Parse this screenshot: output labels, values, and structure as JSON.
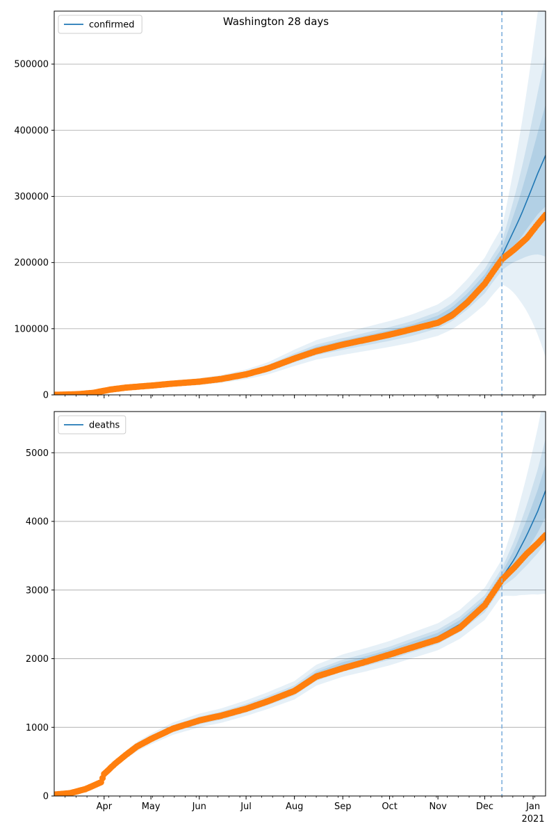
{
  "figure": {
    "title": "Washington 28 days"
  },
  "colors": {
    "model_line": "#1f77b4",
    "band": "#1f77b4",
    "observed": "#ff7f0e",
    "forecast_marker": "#7fb0dd",
    "grid": "#b0b0b0"
  },
  "chart_data": [
    {
      "type": "line",
      "name": "confirmed-panel",
      "legend": "confirmed",
      "legend_position": "top-left",
      "grid": "y",
      "xlim": [
        "2020-02-29",
        "2021-01-09"
      ],
      "ylim": [
        0,
        580000
      ],
      "yticks": [
        0,
        100000,
        200000,
        300000,
        400000,
        500000
      ],
      "xtick_labels": [
        {
          "date": "2020-04-01",
          "label": "Apr"
        },
        {
          "date": "2020-05-01",
          "label": "May"
        },
        {
          "date": "2020-06-01",
          "label": "Jun"
        },
        {
          "date": "2020-07-01",
          "label": "Jul"
        },
        {
          "date": "2020-08-01",
          "label": "Aug"
        },
        {
          "date": "2020-09-01",
          "label": "Sep"
        },
        {
          "date": "2020-10-01",
          "label": "Oct"
        },
        {
          "date": "2020-11-01",
          "label": "Nov"
        },
        {
          "date": "2020-12-01",
          "label": "Dec"
        },
        {
          "date": "2021-01-01",
          "label": "Jan",
          "sub": "2021"
        }
      ],
      "forecast_start": "2020-12-12",
      "observed": {
        "x": [
          "2020-02-29",
          "2020-03-15",
          "2020-03-25",
          "2020-04-05",
          "2020-04-15",
          "2020-05-01",
          "2020-05-15",
          "2020-06-01",
          "2020-06-15",
          "2020-07-01",
          "2020-07-15",
          "2020-08-01",
          "2020-08-15",
          "2020-09-01",
          "2020-09-15",
          "2020-10-01",
          "2020-10-15",
          "2020-11-01",
          "2020-11-10",
          "2020-11-20",
          "2020-12-01",
          "2020-12-06",
          "2020-12-12",
          "2020-12-20",
          "2020-12-28",
          "2021-01-04",
          "2021-01-09"
        ],
        "y": [
          0,
          1000,
          3000,
          8000,
          11000,
          14000,
          17000,
          20000,
          24000,
          31000,
          40000,
          55000,
          66000,
          76000,
          83000,
          91000,
          99000,
          109000,
          120000,
          140000,
          168000,
          185000,
          205000,
          220000,
          237000,
          258000,
          272000
        ]
      },
      "model": {
        "x": [
          "2020-02-29",
          "2020-03-15",
          "2020-03-25",
          "2020-04-05",
          "2020-04-15",
          "2020-05-01",
          "2020-05-15",
          "2020-06-01",
          "2020-06-15",
          "2020-07-01",
          "2020-07-15",
          "2020-08-01",
          "2020-08-15",
          "2020-09-01",
          "2020-09-15",
          "2020-10-01",
          "2020-10-15",
          "2020-11-01",
          "2020-11-10",
          "2020-11-20",
          "2020-12-01",
          "2020-12-06",
          "2020-12-12",
          "2020-12-18",
          "2020-12-24",
          "2020-12-30",
          "2021-01-04",
          "2021-01-09"
        ],
        "y": [
          0,
          1000,
          3000,
          8000,
          11000,
          14000,
          17000,
          20000,
          24000,
          31000,
          40000,
          56000,
          68000,
          77000,
          84000,
          92000,
          100000,
          113000,
          125000,
          145000,
          172000,
          190000,
          210000,
          240000,
          270000,
          305000,
          335000,
          362000
        ],
        "band_half_width_ratio": [
          0.05,
          0.1,
          0.2
        ]
      }
    },
    {
      "type": "line",
      "name": "deaths-panel",
      "legend": "deaths",
      "legend_position": "top-left",
      "grid": "y",
      "xlim": [
        "2020-02-29",
        "2021-01-09"
      ],
      "ylim": [
        0,
        5600
      ],
      "yticks": [
        0,
        1000,
        2000,
        3000,
        4000,
        5000
      ],
      "xtick_labels": [
        {
          "date": "2020-04-01",
          "label": "Apr"
        },
        {
          "date": "2020-05-01",
          "label": "May"
        },
        {
          "date": "2020-06-01",
          "label": "Jun"
        },
        {
          "date": "2020-07-01",
          "label": "Jul"
        },
        {
          "date": "2020-08-01",
          "label": "Aug"
        },
        {
          "date": "2020-09-01",
          "label": "Sep"
        },
        {
          "date": "2020-10-01",
          "label": "Oct"
        },
        {
          "date": "2020-11-01",
          "label": "Nov"
        },
        {
          "date": "2020-12-01",
          "label": "Dec"
        },
        {
          "date": "2021-01-01",
          "label": "Jan",
          "sub": "2021"
        }
      ],
      "forecast_start": "2020-12-12",
      "observed": {
        "x": [
          "2020-02-29",
          "2020-03-10",
          "2020-03-20",
          "2020-03-30",
          "2020-04-01",
          "2020-04-08",
          "2020-04-15",
          "2020-04-22",
          "2020-05-01",
          "2020-05-15",
          "2020-06-01",
          "2020-06-15",
          "2020-07-01",
          "2020-07-15",
          "2020-08-01",
          "2020-08-15",
          "2020-09-01",
          "2020-09-15",
          "2020-10-01",
          "2020-10-15",
          "2020-11-01",
          "2020-11-15",
          "2020-12-01",
          "2020-12-12",
          "2020-12-20",
          "2020-12-28",
          "2021-01-04",
          "2021-01-09"
        ],
        "y": [
          20,
          40,
          100,
          200,
          320,
          470,
          600,
          720,
          830,
          980,
          1100,
          1170,
          1270,
          1380,
          1530,
          1740,
          1860,
          1950,
          2060,
          2160,
          2280,
          2450,
          2780,
          3150,
          3330,
          3530,
          3680,
          3800
        ]
      },
      "model": {
        "x": [
          "2020-02-29",
          "2020-03-10",
          "2020-03-20",
          "2020-03-30",
          "2020-04-01",
          "2020-04-08",
          "2020-04-15",
          "2020-04-22",
          "2020-05-01",
          "2020-05-15",
          "2020-06-01",
          "2020-06-15",
          "2020-07-01",
          "2020-07-15",
          "2020-08-01",
          "2020-08-15",
          "2020-09-01",
          "2020-09-15",
          "2020-10-01",
          "2020-10-15",
          "2020-11-01",
          "2020-11-15",
          "2020-12-01",
          "2020-12-12",
          "2020-12-20",
          "2020-12-28",
          "2021-01-04",
          "2021-01-09"
        ],
        "y": [
          20,
          40,
          100,
          200,
          320,
          470,
          600,
          720,
          830,
          980,
          1100,
          1170,
          1280,
          1390,
          1540,
          1760,
          1900,
          1980,
          2080,
          2190,
          2320,
          2500,
          2800,
          3180,
          3450,
          3800,
          4150,
          4450
        ],
        "band_half_width_ratio": [
          0.02,
          0.04,
          0.08
        ]
      }
    }
  ]
}
